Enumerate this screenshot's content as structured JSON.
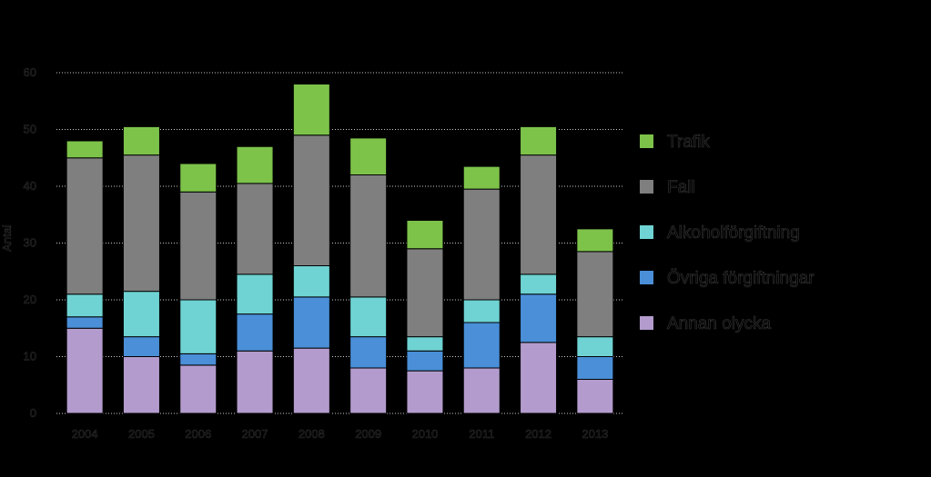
{
  "chart_data": {
    "type": "bar",
    "stacked": true,
    "categories": [
      "2004",
      "2005",
      "2006",
      "2007",
      "2008",
      "2009",
      "2010",
      "2011",
      "2012",
      "2013"
    ],
    "series": [
      {
        "name": "Annan olycka",
        "color": "#b39ccd",
        "values": [
          15,
          10,
          8.5,
          11,
          11.5,
          8,
          7.5,
          8,
          12.5,
          6
        ]
      },
      {
        "name": "Övriga förgiftningar",
        "color": "#4a8fd8",
        "values": [
          2,
          3.5,
          2,
          6.5,
          9,
          5.5,
          3.5,
          8,
          8.5,
          4
        ]
      },
      {
        "name": "Alkoholförgiftning",
        "color": "#6fd3d3",
        "values": [
          4,
          8,
          9.5,
          7,
          5.5,
          7,
          2.5,
          4,
          3.5,
          3.5
        ]
      },
      {
        "name": "Fall",
        "color": "#7f7f7f",
        "values": [
          24,
          24,
          19,
          16,
          23,
          21.5,
          15.5,
          19.5,
          21,
          15
        ]
      },
      {
        "name": "Trafik",
        "color": "#7dc34a",
        "values": [
          3,
          5,
          5,
          6.5,
          9,
          6.5,
          5,
          4,
          5,
          4
        ]
      }
    ],
    "ylim": [
      0,
      60
    ],
    "yticks": [
      "0",
      "10",
      "20",
      "30",
      "40",
      "50",
      "60"
    ],
    "ylabel": "Antal",
    "grid": true,
    "legend_position": "right"
  }
}
